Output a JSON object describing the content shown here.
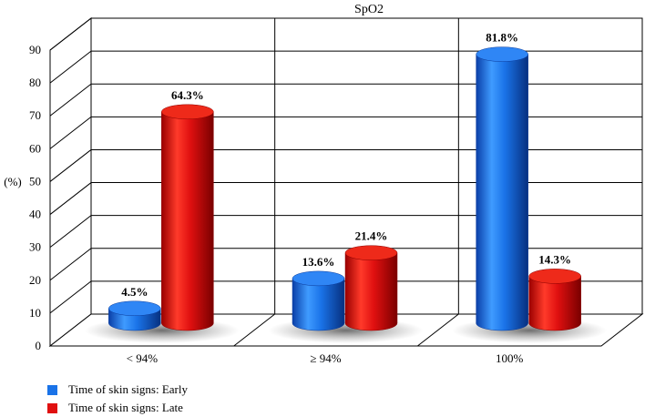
{
  "chart_data": {
    "type": "bar",
    "title": "SpO2",
    "ylabel": "(%)",
    "xlabel": "",
    "categories": [
      "< 94%",
      "≥ 94%",
      "100%"
    ],
    "series": [
      {
        "name": "Time of skin signs: Early",
        "values": [
          4.5,
          13.6,
          81.8
        ],
        "labels": [
          "4.5%",
          "13.6%",
          "81.8%"
        ],
        "color": "#1a73e8"
      },
      {
        "name": "Time of skin signs: Late",
        "values": [
          64.3,
          21.4,
          14.3
        ],
        "labels": [
          "64.3%",
          "21.4%",
          "14.3%"
        ],
        "color": "#e01010"
      }
    ],
    "ylim": [
      0,
      90
    ],
    "yticks": [
      0,
      10,
      20,
      30,
      40,
      50,
      60,
      70,
      80,
      90
    ],
    "grid": true,
    "legend": "bottom-left",
    "style": "3d-cylinder"
  }
}
